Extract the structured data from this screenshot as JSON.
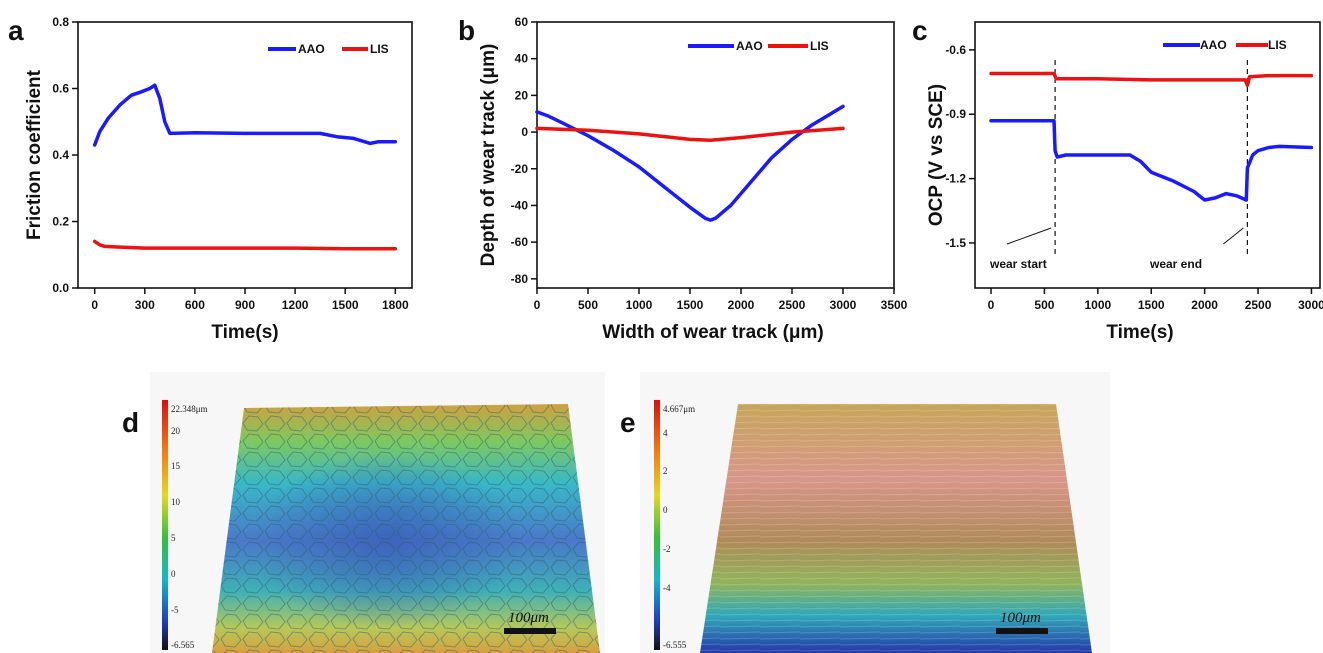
{
  "chart_data": [
    {
      "panel": "a",
      "type": "line",
      "xlabel": "Time(s)",
      "ylabel": "Friction  coefficient",
      "xlim": [
        -100,
        1900
      ],
      "ylim": [
        0.0,
        0.8
      ],
      "xticks": [
        0,
        300,
        600,
        900,
        1200,
        1500,
        1800
      ],
      "yticks": [
        0.0,
        0.2,
        0.4,
        0.6,
        0.8
      ],
      "ytick_labels": [
        "0.0",
        "0.2",
        "0.4",
        "0.6",
        "0.8"
      ],
      "legend_position": "top-right",
      "series": [
        {
          "name": "AAO",
          "color": "#1a1aff",
          "x": [
            0,
            30,
            80,
            150,
            220,
            280,
            330,
            360,
            390,
            420,
            450,
            600,
            900,
            1200,
            1350,
            1450,
            1550,
            1650,
            1700,
            1800
          ],
          "y": [
            0.43,
            0.47,
            0.51,
            0.55,
            0.58,
            0.59,
            0.6,
            0.61,
            0.57,
            0.5,
            0.465,
            0.467,
            0.465,
            0.465,
            0.465,
            0.455,
            0.45,
            0.435,
            0.44,
            0.44
          ]
        },
        {
          "name": "LIS",
          "color": "#ee1111",
          "x": [
            0,
            30,
            60,
            150,
            300,
            600,
            900,
            1200,
            1500,
            1800
          ],
          "y": [
            0.14,
            0.13,
            0.125,
            0.123,
            0.12,
            0.12,
            0.12,
            0.12,
            0.118,
            0.118
          ]
        }
      ]
    },
    {
      "panel": "b",
      "type": "line",
      "xlabel": "Width of wear track (μm)",
      "ylabel": "Depth of wear track (μm)",
      "xlim": [
        0,
        3500
      ],
      "ylim": [
        -85,
        60
      ],
      "xticks": [
        0,
        500,
        1000,
        1500,
        2000,
        2500,
        3000,
        3500
      ],
      "yticks": [
        -80,
        -60,
        -40,
        -20,
        0,
        20,
        40,
        60
      ],
      "legend_position": "top-right",
      "series": [
        {
          "name": "AAO",
          "color": "#1a1aff",
          "x": [
            0,
            100,
            250,
            500,
            750,
            1000,
            1250,
            1500,
            1650,
            1700,
            1750,
            1900,
            2100,
            2300,
            2500,
            2700,
            2850,
            3000
          ],
          "y": [
            11,
            9,
            5,
            -2,
            -10,
            -19,
            -30,
            -41,
            -47,
            -48,
            -47,
            -40,
            -27,
            -14,
            -4,
            4,
            9,
            14
          ]
        },
        {
          "name": "LIS",
          "color": "#ee1111",
          "x": [
            0,
            500,
            1000,
            1500,
            1700,
            2000,
            2500,
            3000
          ],
          "y": [
            2,
            1,
            -1,
            -4,
            -4.5,
            -3,
            0,
            2
          ]
        }
      ]
    },
    {
      "panel": "c",
      "type": "line",
      "xlabel": "Time(s)",
      "ylabel": "OCP (V vs SCE)",
      "xlim": [
        -150,
        3080
      ],
      "ylim": [
        -1.71,
        -0.47
      ],
      "xticks": [
        0,
        500,
        1000,
        1500,
        2000,
        2500,
        3000
      ],
      "yticks": [
        -0.6,
        -0.9,
        -1.2,
        -1.5
      ],
      "ytick_labels": [
        "-0.6",
        "-0.9",
        "-1.2",
        "-1.5"
      ],
      "legend_position": "top-right",
      "annotations": [
        {
          "text": "wear start",
          "x": 600
        },
        {
          "text": "wear end",
          "x": 2400
        }
      ],
      "series": [
        {
          "name": "AAO",
          "color": "#1a1aff",
          "x": [
            0,
            300,
            590,
            600,
            620,
            700,
            1000,
            1300,
            1400,
            1500,
            1700,
            1900,
            2000,
            2100,
            2200,
            2300,
            2390,
            2400,
            2450,
            2500,
            2600,
            2700,
            3000
          ],
          "y": [
            -0.93,
            -0.93,
            -0.93,
            -1.07,
            -1.1,
            -1.09,
            -1.09,
            -1.09,
            -1.12,
            -1.17,
            -1.21,
            -1.26,
            -1.3,
            -1.29,
            -1.27,
            -1.28,
            -1.3,
            -1.15,
            -1.09,
            -1.07,
            -1.055,
            -1.05,
            -1.055
          ]
        },
        {
          "name": "LIS",
          "color": "#ee1111",
          "x": [
            0,
            300,
            590,
            610,
            1000,
            1500,
            2000,
            2380,
            2400,
            2420,
            2600,
            3000
          ],
          "y": [
            -0.71,
            -0.71,
            -0.71,
            -0.735,
            -0.735,
            -0.74,
            -0.74,
            -0.74,
            -0.765,
            -0.725,
            -0.72,
            -0.72
          ]
        }
      ]
    },
    {
      "panel": "d",
      "type": "heatmap",
      "colorbar_max_label": "22.348μm",
      "colorbar_labels": [
        "20",
        "15",
        "10",
        "5",
        "0",
        "-5"
      ],
      "colorbar_min_label": "-6.565",
      "scale_bar": "100μm"
    },
    {
      "panel": "e",
      "type": "heatmap",
      "colorbar_max_label": "4.667μm",
      "colorbar_labels": [
        "4",
        "2",
        "0",
        "-2",
        "-4"
      ],
      "colorbar_min_label": "-6.555",
      "scale_bar": "100μm"
    }
  ]
}
